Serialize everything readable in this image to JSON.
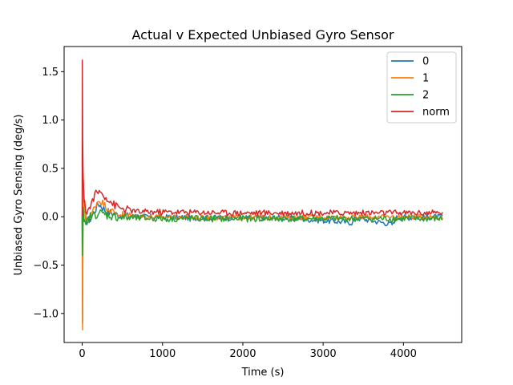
{
  "chart_data": {
    "type": "line",
    "title": "Actual v Expected Unbiased Gyro Sensor",
    "xlabel": "Time (s)",
    "ylabel": "Unbiased Gyro Sensing (deg/s)",
    "xlim": [
      -225,
      4725
    ],
    "ylim": [
      -1.3,
      1.76
    ],
    "xticks": [
      0,
      1000,
      2000,
      3000,
      4000
    ],
    "yticks": [
      -1.0,
      -0.5,
      0.0,
      0.5,
      1.0,
      1.5
    ],
    "ytick_labels": [
      "−1.0",
      "−0.5",
      "0.0",
      "0.5",
      "1.0",
      "1.5"
    ],
    "legend_position": "top-right",
    "grid": false,
    "series": [
      {
        "name": "0",
        "color": "#1f77b4",
        "points": [
          [
            0,
            0.0
          ],
          [
            5,
            -1.1
          ],
          [
            12,
            0.4
          ],
          [
            25,
            0.05
          ],
          [
            50,
            -0.05
          ],
          [
            100,
            -0.02
          ],
          [
            150,
            0.05
          ],
          [
            200,
            0.14
          ],
          [
            250,
            0.1
          ],
          [
            300,
            0.06
          ],
          [
            400,
            0.03
          ],
          [
            500,
            0.01
          ],
          [
            800,
            0.0
          ],
          [
            1500,
            -0.01
          ],
          [
            2500,
            -0.01
          ],
          [
            3370,
            -0.06
          ],
          [
            3400,
            -0.01
          ],
          [
            3880,
            -0.08
          ],
          [
            3900,
            -0.01
          ],
          [
            4500,
            0.0
          ]
        ],
        "noise_amplitude": 0.03
      },
      {
        "name": "1",
        "color": "#ff7f0e",
        "points": [
          [
            0,
            0.0
          ],
          [
            5,
            -1.17
          ],
          [
            12,
            0.45
          ],
          [
            25,
            0.05
          ],
          [
            50,
            -0.04
          ],
          [
            100,
            -0.01
          ],
          [
            150,
            0.1
          ],
          [
            200,
            0.17
          ],
          [
            250,
            0.15
          ],
          [
            300,
            0.1
          ],
          [
            400,
            0.04
          ],
          [
            500,
            0.02
          ],
          [
            800,
            0.0
          ],
          [
            1500,
            -0.01
          ],
          [
            4500,
            0.0
          ]
        ],
        "noise_amplitude": 0.025
      },
      {
        "name": "2",
        "color": "#2ca02c",
        "points": [
          [
            0,
            0.0
          ],
          [
            5,
            -0.4
          ],
          [
            12,
            0.1
          ],
          [
            25,
            -0.05
          ],
          [
            40,
            -0.12
          ],
          [
            60,
            -0.05
          ],
          [
            100,
            0.0
          ],
          [
            200,
            0.04
          ],
          [
            300,
            0.02
          ],
          [
            500,
            -0.01
          ],
          [
            1000,
            -0.02
          ],
          [
            4500,
            -0.02
          ]
        ],
        "noise_amplitude": 0.035
      },
      {
        "name": "norm",
        "color": "#d62728",
        "points": [
          [
            0,
            0.0
          ],
          [
            2,
            1.62
          ],
          [
            6,
            0.8
          ],
          [
            12,
            0.4
          ],
          [
            25,
            0.15
          ],
          [
            50,
            0.05
          ],
          [
            100,
            0.1
          ],
          [
            150,
            0.22
          ],
          [
            200,
            0.26
          ],
          [
            250,
            0.24
          ],
          [
            300,
            0.2
          ],
          [
            400,
            0.12
          ],
          [
            500,
            0.08
          ],
          [
            700,
            0.05
          ],
          [
            1000,
            0.05
          ],
          [
            2000,
            0.04
          ],
          [
            3000,
            0.04
          ],
          [
            4000,
            0.04
          ],
          [
            4500,
            0.04
          ]
        ],
        "noise_amplitude": 0.03
      }
    ]
  }
}
